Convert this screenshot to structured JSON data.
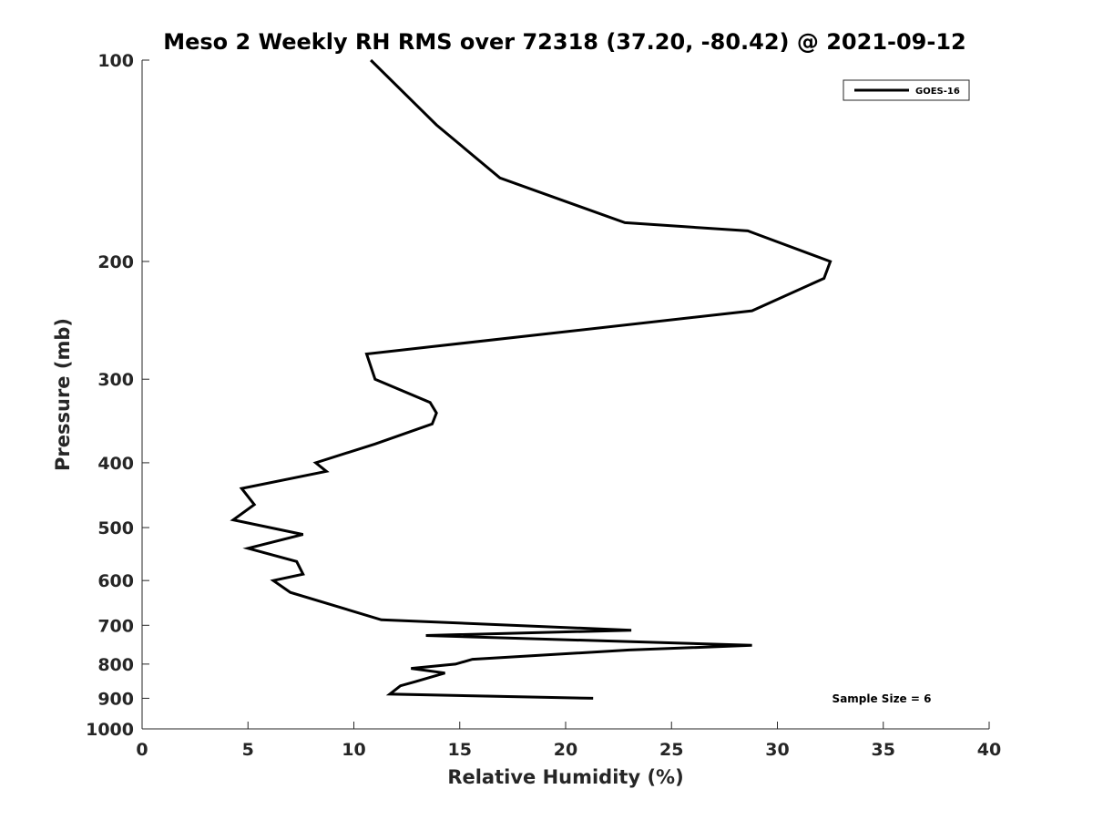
{
  "chart_data": {
    "type": "line",
    "title": "Meso 2 Weekly RH RMS over 72318 (37.20, -80.42) @ 2021-09-12",
    "xlabel": "Relative Humidity (%)",
    "ylabel": "Pressure (mb)",
    "xlim": [
      0,
      40
    ],
    "ylim": [
      100,
      1000
    ],
    "yscale": "log",
    "y_reversed": true,
    "grid": false,
    "legend_position": "top-right",
    "x_ticks": [
      0,
      5,
      10,
      15,
      20,
      25,
      30,
      35,
      40
    ],
    "y_ticks": [
      100,
      200,
      300,
      400,
      500,
      600,
      700,
      800,
      900,
      1000
    ],
    "annotation": "Sample Size = 6",
    "series": [
      {
        "name": "GOES-16",
        "color": "#000000",
        "points": [
          {
            "p": 100,
            "rh": 10.8
          },
          {
            "p": 125,
            "rh": 13.9
          },
          {
            "p": 150,
            "rh": 16.9
          },
          {
            "p": 175,
            "rh": 22.8
          },
          {
            "p": 180,
            "rh": 28.6
          },
          {
            "p": 200,
            "rh": 32.5
          },
          {
            "p": 212,
            "rh": 32.2
          },
          {
            "p": 237,
            "rh": 28.8
          },
          {
            "p": 275,
            "rh": 10.6
          },
          {
            "p": 300,
            "rh": 11.0
          },
          {
            "p": 325,
            "rh": 13.6
          },
          {
            "p": 337,
            "rh": 13.9
          },
          {
            "p": 350,
            "rh": 13.7
          },
          {
            "p": 375,
            "rh": 11.0
          },
          {
            "p": 400,
            "rh": 8.2
          },
          {
            "p": 412,
            "rh": 8.7
          },
          {
            "p": 437,
            "rh": 4.7
          },
          {
            "p": 462,
            "rh": 5.3
          },
          {
            "p": 487,
            "rh": 4.3
          },
          {
            "p": 512,
            "rh": 7.6
          },
          {
            "p": 537,
            "rh": 5.0
          },
          {
            "p": 562,
            "rh": 7.3
          },
          {
            "p": 587,
            "rh": 7.6
          },
          {
            "p": 600,
            "rh": 6.2
          },
          {
            "p": 625,
            "rh": 7.0
          },
          {
            "p": 687,
            "rh": 11.3
          },
          {
            "p": 712,
            "rh": 23.1
          },
          {
            "p": 725,
            "rh": 13.4
          },
          {
            "p": 750,
            "rh": 28.8
          },
          {
            "p": 762,
            "rh": 23.0
          },
          {
            "p": 787,
            "rh": 15.6
          },
          {
            "p": 800,
            "rh": 14.8
          },
          {
            "p": 812,
            "rh": 12.7
          },
          {
            "p": 825,
            "rh": 14.3
          },
          {
            "p": 850,
            "rh": 12.9
          },
          {
            "p": 862,
            "rh": 12.2
          },
          {
            "p": 887,
            "rh": 11.7
          },
          {
            "p": 900,
            "rh": 21.3
          }
        ]
      }
    ]
  }
}
